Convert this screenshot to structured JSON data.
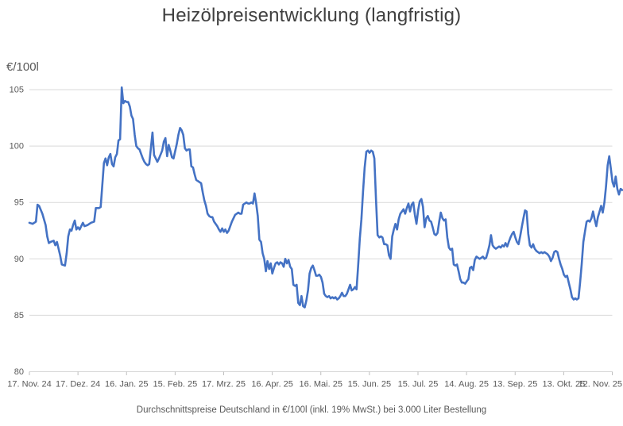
{
  "chart": {
    "title": "Heizölpreisentwicklung (langfristig)",
    "caption": "Durchschnittspreise Deutschland in €/100l (inkl. 19% MwSt.) bei 3.000 Liter Bestellung",
    "y_axis": {
      "unit": "€/100l"
    }
  },
  "chart_data": {
    "type": "line",
    "title": "Heizölpreisentwicklung (langfristig)",
    "subtitle": "Durchschnittspreise Deutschland in €/100l (inkl. 19% MwSt.) bei 3.000 Liter Bestellung",
    "ylabel": "€/100l",
    "ylim": [
      80,
      105
    ],
    "y_axis_ticks": [
      105,
      100,
      95,
      90,
      85,
      80
    ],
    "x_tick_labels": [
      "17. Nov. 24",
      "17. Dez. 24",
      "16. Jan. 25",
      "15. Feb. 25",
      "17. Mrz. 25",
      "16. Apr. 25",
      "16. Mai. 25",
      "15. Jun. 25",
      "15. Jul. 25",
      "14. Aug. 25",
      "13. Sep. 25",
      "13. Okt. 25",
      "12. Nov. 25"
    ],
    "x_unit": "days_since_first_tick",
    "grid": true,
    "legend": "none",
    "line_color": "#4472C4",
    "grid_color": "#d9d9d9",
    "tick_color": "#bfbfbf",
    "axis_text_color": "#595959",
    "title_color": "#404040",
    "points_day_value": [
      [
        0,
        93.2
      ],
      [
        2,
        93.1
      ],
      [
        4,
        93.3
      ],
      [
        5,
        94.8
      ],
      [
        6,
        94.7
      ],
      [
        8,
        94.0
      ],
      [
        10,
        93.0
      ],
      [
        11,
        92.0
      ],
      [
        12,
        91.4
      ],
      [
        13,
        91.5
      ],
      [
        15,
        91.6
      ],
      [
        16,
        91.2
      ],
      [
        17,
        91.5
      ],
      [
        19,
        90.3
      ],
      [
        20,
        89.5
      ],
      [
        22,
        89.4
      ],
      [
        23,
        90.5
      ],
      [
        24,
        92.0
      ],
      [
        25,
        92.6
      ],
      [
        26,
        92.5
      ],
      [
        27,
        93.0
      ],
      [
        28,
        93.4
      ],
      [
        29,
        92.6
      ],
      [
        30,
        92.8
      ],
      [
        31,
        92.6
      ],
      [
        33,
        93.2
      ],
      [
        34,
        92.9
      ],
      [
        36,
        93.0
      ],
      [
        38,
        93.2
      ],
      [
        40,
        93.3
      ],
      [
        41,
        94.5
      ],
      [
        43,
        94.5
      ],
      [
        44,
        94.6
      ],
      [
        45,
        96.5
      ],
      [
        46,
        98.5
      ],
      [
        47,
        98.9
      ],
      [
        48,
        98.3
      ],
      [
        49,
        99.0
      ],
      [
        50,
        99.3
      ],
      [
        51,
        98.4
      ],
      [
        52,
        98.2
      ],
      [
        53,
        99.0
      ],
      [
        54,
        99.3
      ],
      [
        55,
        100.5
      ],
      [
        56,
        100.6
      ],
      [
        57,
        105.2
      ],
      [
        58,
        103.8
      ],
      [
        59,
        104.0
      ],
      [
        60,
        103.9
      ],
      [
        61,
        103.9
      ],
      [
        62,
        103.5
      ],
      [
        63,
        102.7
      ],
      [
        64,
        102.4
      ],
      [
        65,
        101.0
      ],
      [
        66,
        100.0
      ],
      [
        67,
        99.8
      ],
      [
        68,
        99.7
      ],
      [
        69,
        99.3
      ],
      [
        70,
        98.9
      ],
      [
        71,
        98.6
      ],
      [
        72,
        98.4
      ],
      [
        73,
        98.3
      ],
      [
        74,
        98.4
      ],
      [
        76,
        101.2
      ],
      [
        77,
        99.2
      ],
      [
        78,
        98.9
      ],
      [
        79,
        98.6
      ],
      [
        80,
        98.9
      ],
      [
        82,
        99.6
      ],
      [
        83,
        100.4
      ],
      [
        84,
        100.7
      ],
      [
        85,
        99.1
      ],
      [
        86,
        100.1
      ],
      [
        87,
        99.6
      ],
      [
        88,
        99.0
      ],
      [
        89,
        98.9
      ],
      [
        91,
        100.2
      ],
      [
        92,
        101.0
      ],
      [
        93,
        101.6
      ],
      [
        94,
        101.4
      ],
      [
        95,
        101.0
      ],
      [
        96,
        99.8
      ],
      [
        97,
        99.6
      ],
      [
        98,
        99.7
      ],
      [
        99,
        99.7
      ],
      [
        100,
        98.2
      ],
      [
        101,
        98.1
      ],
      [
        102,
        97.5
      ],
      [
        103,
        97.0
      ],
      [
        104,
        96.9
      ],
      [
        105,
        96.8
      ],
      [
        106,
        96.7
      ],
      [
        107,
        95.9
      ],
      [
        108,
        95.2
      ],
      [
        109,
        94.7
      ],
      [
        110,
        94.0
      ],
      [
        111,
        93.8
      ],
      [
        112,
        93.7
      ],
      [
        113,
        93.7
      ],
      [
        114,
        93.3
      ],
      [
        116,
        92.9
      ],
      [
        117,
        92.6
      ],
      [
        118,
        92.4
      ],
      [
        119,
        92.7
      ],
      [
        120,
        92.4
      ],
      [
        121,
        92.6
      ],
      [
        122,
        92.3
      ],
      [
        123,
        92.5
      ],
      [
        125,
        93.3
      ],
      [
        127,
        93.9
      ],
      [
        128,
        94.0
      ],
      [
        129,
        94.1
      ],
      [
        130,
        94.0
      ],
      [
        131,
        94.0
      ],
      [
        132,
        94.8
      ],
      [
        133,
        94.9
      ],
      [
        134,
        95.0
      ],
      [
        135,
        94.9
      ],
      [
        136,
        94.9
      ],
      [
        137,
        95.0
      ],
      [
        138,
        94.9
      ],
      [
        139,
        95.8
      ],
      [
        140,
        94.9
      ],
      [
        141,
        93.8
      ],
      [
        142,
        91.7
      ],
      [
        143,
        91.5
      ],
      [
        144,
        90.5
      ],
      [
        145,
        90.0
      ],
      [
        146,
        88.9
      ],
      [
        147,
        89.8
      ],
      [
        148,
        89.1
      ],
      [
        149,
        89.6
      ],
      [
        150,
        88.7
      ],
      [
        151,
        89.2
      ],
      [
        152,
        89.6
      ],
      [
        153,
        89.7
      ],
      [
        154,
        89.5
      ],
      [
        155,
        89.7
      ],
      [
        156,
        89.6
      ],
      [
        157,
        89.3
      ],
      [
        158,
        90.0
      ],
      [
        159,
        89.6
      ],
      [
        160,
        89.9
      ],
      [
        161,
        89.3
      ],
      [
        162,
        89.1
      ],
      [
        163,
        87.7
      ],
      [
        164,
        87.6
      ],
      [
        165,
        87.7
      ],
      [
        166,
        86.1
      ],
      [
        167,
        85.9
      ],
      [
        168,
        86.7
      ],
      [
        169,
        85.8
      ],
      [
        170,
        85.7
      ],
      [
        171,
        86.3
      ],
      [
        172,
        87.2
      ],
      [
        173,
        88.7
      ],
      [
        174,
        89.2
      ],
      [
        175,
        89.4
      ],
      [
        176,
        89.0
      ],
      [
        177,
        88.5
      ],
      [
        178,
        88.5
      ],
      [
        179,
        88.6
      ],
      [
        180,
        88.4
      ],
      [
        181,
        87.9
      ],
      [
        182,
        86.9
      ],
      [
        183,
        86.7
      ],
      [
        184,
        86.6
      ],
      [
        185,
        86.7
      ],
      [
        186,
        86.5
      ],
      [
        187,
        86.6
      ],
      [
        188,
        86.5
      ],
      [
        189,
        86.6
      ],
      [
        190,
        86.4
      ],
      [
        191,
        86.5
      ],
      [
        192,
        86.7
      ],
      [
        193,
        87.0
      ],
      [
        194,
        86.7
      ],
      [
        195,
        86.7
      ],
      [
        196,
        86.9
      ],
      [
        198,
        87.7
      ],
      [
        199,
        87.2
      ],
      [
        200,
        87.3
      ],
      [
        201,
        87.5
      ],
      [
        202,
        87.3
      ],
      [
        203,
        89.5
      ],
      [
        204,
        91.8
      ],
      [
        205,
        93.5
      ],
      [
        206,
        96.0
      ],
      [
        207,
        98.1
      ],
      [
        208,
        99.5
      ],
      [
        209,
        99.6
      ],
      [
        210,
        99.4
      ],
      [
        211,
        99.6
      ],
      [
        212,
        99.5
      ],
      [
        213,
        98.9
      ],
      [
        214,
        95.2
      ],
      [
        215,
        92.1
      ],
      [
        216,
        91.9
      ],
      [
        217,
        92.0
      ],
      [
        218,
        91.9
      ],
      [
        219,
        91.3
      ],
      [
        220,
        91.3
      ],
      [
        221,
        91.2
      ],
      [
        222,
        90.3
      ],
      [
        223,
        90.0
      ],
      [
        224,
        92.0
      ],
      [
        225,
        92.6
      ],
      [
        226,
        93.1
      ],
      [
        227,
        92.6
      ],
      [
        228,
        93.5
      ],
      [
        229,
        94.0
      ],
      [
        230,
        94.2
      ],
      [
        231,
        94.4
      ],
      [
        232,
        94.0
      ],
      [
        233,
        94.5
      ],
      [
        234,
        94.9
      ],
      [
        235,
        94.2
      ],
      [
        236,
        94.8
      ],
      [
        237,
        95.0
      ],
      [
        238,
        93.9
      ],
      [
        239,
        93.1
      ],
      [
        240,
        94.3
      ],
      [
        241,
        95.1
      ],
      [
        242,
        95.3
      ],
      [
        243,
        94.6
      ],
      [
        244,
        92.8
      ],
      [
        245,
        93.6
      ],
      [
        246,
        93.8
      ],
      [
        247,
        93.4
      ],
      [
        248,
        93.3
      ],
      [
        249,
        92.8
      ],
      [
        250,
        92.2
      ],
      [
        251,
        92.1
      ],
      [
        252,
        92.3
      ],
      [
        253,
        93.3
      ],
      [
        254,
        94.1
      ],
      [
        255,
        93.6
      ],
      [
        256,
        93.4
      ],
      [
        257,
        93.5
      ],
      [
        258,
        91.9
      ],
      [
        259,
        91.0
      ],
      [
        260,
        90.8
      ],
      [
        261,
        90.9
      ],
      [
        262,
        89.5
      ],
      [
        263,
        89.4
      ],
      [
        264,
        89.5
      ],
      [
        265,
        88.9
      ],
      [
        266,
        88.2
      ],
      [
        267,
        87.9
      ],
      [
        268,
        87.9
      ],
      [
        269,
        87.8
      ],
      [
        270,
        88.0
      ],
      [
        271,
        88.2
      ],
      [
        272,
        89.2
      ],
      [
        273,
        89.3
      ],
      [
        274,
        89.0
      ],
      [
        275,
        89.9
      ],
      [
        276,
        90.2
      ],
      [
        277,
        90.1
      ],
      [
        278,
        90.0
      ],
      [
        279,
        90.1
      ],
      [
        280,
        90.2
      ],
      [
        281,
        90.0
      ],
      [
        282,
        90.1
      ],
      [
        283,
        90.6
      ],
      [
        284,
        91.2
      ],
      [
        285,
        92.1
      ],
      [
        286,
        91.2
      ],
      [
        287,
        91.0
      ],
      [
        288,
        90.9
      ],
      [
        289,
        91.0
      ],
      [
        290,
        91.1
      ],
      [
        291,
        91.0
      ],
      [
        292,
        91.2
      ],
      [
        293,
        91.1
      ],
      [
        294,
        91.4
      ],
      [
        295,
        91.1
      ],
      [
        296,
        91.5
      ],
      [
        297,
        91.9
      ],
      [
        298,
        92.2
      ],
      [
        299,
        92.4
      ],
      [
        300,
        91.9
      ],
      [
        301,
        91.5
      ],
      [
        302,
        91.3
      ],
      [
        303,
        92.0
      ],
      [
        304,
        92.8
      ],
      [
        305,
        93.6
      ],
      [
        306,
        94.3
      ],
      [
        307,
        94.2
      ],
      [
        308,
        92.2
      ],
      [
        309,
        91.2
      ],
      [
        310,
        91.0
      ],
      [
        311,
        91.3
      ],
      [
        312,
        90.9
      ],
      [
        313,
        90.7
      ],
      [
        314,
        90.6
      ],
      [
        315,
        90.5
      ],
      [
        316,
        90.6
      ],
      [
        317,
        90.5
      ],
      [
        318,
        90.6
      ],
      [
        319,
        90.5
      ],
      [
        320,
        90.4
      ],
      [
        321,
        90.2
      ],
      [
        322,
        89.8
      ],
      [
        323,
        90.1
      ],
      [
        324,
        90.6
      ],
      [
        325,
        90.7
      ],
      [
        326,
        90.6
      ],
      [
        327,
        90.0
      ],
      [
        328,
        89.5
      ],
      [
        329,
        89.1
      ],
      [
        330,
        88.6
      ],
      [
        331,
        88.4
      ],
      [
        332,
        88.5
      ],
      [
        333,
        87.9
      ],
      [
        334,
        87.3
      ],
      [
        335,
        86.6
      ],
      [
        336,
        86.4
      ],
      [
        337,
        86.5
      ],
      [
        338,
        86.4
      ],
      [
        339,
        86.5
      ],
      [
        340,
        87.9
      ],
      [
        341,
        89.5
      ],
      [
        342,
        91.5
      ],
      [
        343,
        92.4
      ],
      [
        344,
        93.3
      ],
      [
        345,
        93.4
      ],
      [
        346,
        93.3
      ],
      [
        347,
        93.6
      ],
      [
        348,
        94.2
      ],
      [
        349,
        93.5
      ],
      [
        350,
        92.9
      ],
      [
        351,
        93.7
      ],
      [
        352,
        94.2
      ],
      [
        353,
        94.7
      ],
      [
        354,
        94.1
      ],
      [
        355,
        95.0
      ],
      [
        356,
        96.4
      ],
      [
        357,
        98.3
      ],
      [
        358,
        99.1
      ],
      [
        359,
        98.0
      ],
      [
        360,
        96.8
      ],
      [
        361,
        96.4
      ],
      [
        362,
        97.3
      ],
      [
        363,
        96.2
      ],
      [
        364,
        95.7
      ],
      [
        365,
        96.2
      ],
      [
        366,
        96.1
      ]
    ]
  }
}
